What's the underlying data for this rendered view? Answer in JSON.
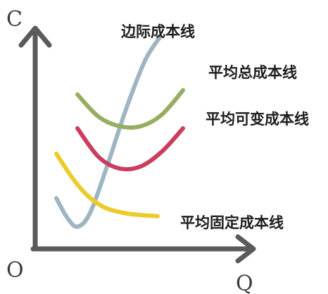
{
  "chart_data": {
    "type": "line",
    "title": "",
    "xlabel": "Q",
    "ylabel": "C",
    "origin_label": "O",
    "xlim": [
      0,
      10
    ],
    "ylim": [
      0,
      10
    ],
    "grid": false,
    "series": [
      {
        "name": "边际成本线",
        "color": "#9fb5c2",
        "x": [
          1.0,
          1.5,
          2.0,
          2.6,
          3.4,
          4.3,
          5.2,
          5.9
        ],
        "y": [
          2.4,
          1.5,
          1.05,
          1.7,
          3.9,
          6.6,
          8.9,
          10.0
        ]
      },
      {
        "name": "平均总成本线",
        "color": "#95ae62",
        "x": [
          2.0,
          3.0,
          4.0,
          5.0,
          6.0,
          7.0
        ],
        "y": [
          7.3,
          6.25,
          5.8,
          5.8,
          6.35,
          7.5
        ]
      },
      {
        "name": "平均可变成本线",
        "color": "#c93d5e",
        "x": [
          2.0,
          3.0,
          4.0,
          5.0,
          6.0,
          7.0
        ],
        "y": [
          5.7,
          4.35,
          3.8,
          3.9,
          4.6,
          5.7
        ]
      },
      {
        "name": "平均固定成本线",
        "color": "#eccb2a",
        "x": [
          1.0,
          1.8,
          2.5,
          3.3,
          4.2,
          5.0,
          5.8
        ],
        "y": [
          4.5,
          3.3,
          2.5,
          1.95,
          1.7,
          1.6,
          1.55
        ]
      }
    ],
    "axis_color": "#5a5a5a"
  }
}
